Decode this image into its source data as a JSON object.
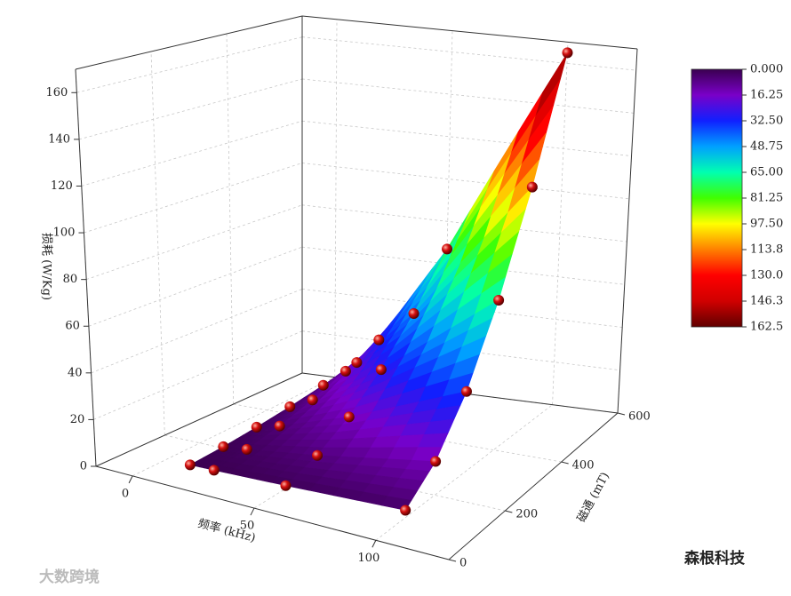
{
  "chart_data": {
    "type": "surface3d",
    "xlabel": "频率 (kHz)",
    "ylabel": "磁通 (mT)",
    "zlabel": "损耗 (W/Kg)",
    "x": [
      10,
      10,
      10,
      10,
      10,
      10,
      20,
      20,
      20,
      20,
      20,
      20,
      50,
      50,
      50,
      50,
      50,
      50,
      100,
      100,
      100,
      100,
      100,
      100
    ],
    "y": [
      100,
      200,
      300,
      400,
      500,
      600,
      100,
      200,
      300,
      400,
      500,
      600,
      100,
      200,
      300,
      400,
      500,
      600,
      100,
      200,
      300,
      400,
      500,
      600
    ],
    "z": [
      0.2,
      0.7,
      1.8,
      3.4,
      5.5,
      8.3,
      0.4,
      1.8,
      4.4,
      8.3,
      13.6,
      20.3,
      1.3,
      6.0,
      14.6,
      27.5,
      44.9,
      67.0,
      3.2,
      14.7,
      36.0,
      67.7,
      110.6,
      165.0
    ],
    "xlim": [
      -15,
      130
    ],
    "ylim": [
      0,
      600
    ],
    "zlim": [
      0,
      170
    ],
    "xticks": [
      0,
      50,
      100
    ],
    "yticks": [
      0,
      200,
      400,
      600
    ],
    "zticks": [
      0,
      20,
      40,
      60,
      80,
      100,
      120,
      140,
      160
    ],
    "grid": true,
    "point_color": "#d41010",
    "colormap": [
      "#3a0050",
      "#7a00c8",
      "#1020ff",
      "#00a0ff",
      "#00ffb0",
      "#40ff00",
      "#ffff00",
      "#ff8000",
      "#ff0000",
      "#d00000",
      "#600000"
    ],
    "clim": [
      0,
      162.5
    ],
    "colorbar_ticks": [
      {
        "value": 0,
        "label": "0.000"
      },
      16.25,
      {
        "value": 32.5,
        "label": "32.50"
      },
      48.75,
      {
        "value": 65,
        "label": "65.00"
      },
      81.25,
      {
        "value": 97.5,
        "label": "97.50"
      },
      {
        "value": 113.75,
        "label": "113.8"
      },
      {
        "value": 130,
        "label": "130.0"
      },
      {
        "value": 146.25,
        "label": "146.3"
      },
      162.5
    ]
  },
  "watermarks": [
    "森根科技",
    "大数跨境"
  ]
}
